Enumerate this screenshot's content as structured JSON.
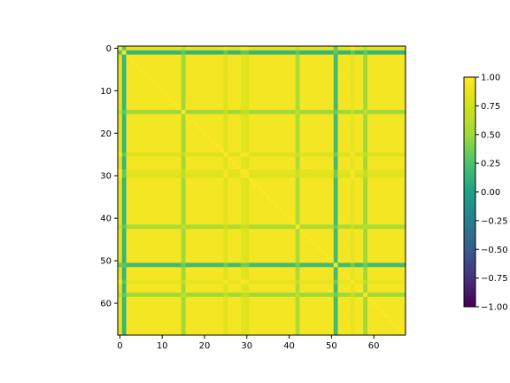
{
  "chart_data": {
    "type": "heatmap",
    "title": "",
    "xlabel": "",
    "ylabel": "",
    "size": 68,
    "xlim": [
      -0.5,
      67.5
    ],
    "ylim": [
      67.5,
      -0.5
    ],
    "x_ticks": [
      0,
      10,
      20,
      30,
      40,
      50,
      60
    ],
    "x_tick_labels": [
      "0",
      "10",
      "20",
      "30",
      "40",
      "50",
      "60"
    ],
    "y_ticks": [
      0,
      10,
      20,
      30,
      40,
      50,
      60
    ],
    "y_tick_labels": [
      "0",
      "10",
      "20",
      "30",
      "40",
      "50",
      "60"
    ],
    "colormap": "viridis",
    "vmin": -1.0,
    "vmax": 1.0,
    "colorbar_ticks": [
      1.0,
      0.75,
      0.5,
      0.25,
      0.0,
      -0.25,
      -0.5,
      -0.75,
      -1.0
    ],
    "colorbar_tick_labels": [
      "1.00",
      "0.75",
      "0.50",
      "0.25",
      "0.00",
      "−0.25",
      "−0.50",
      "−0.75",
      "−1.00"
    ],
    "base_value": 0.95,
    "diagonal_value": 1.0,
    "special_indices": [
      {
        "index": 0,
        "level": 0.85
      },
      {
        "index": 1,
        "level": 0.15
      },
      {
        "index": 15,
        "level": 0.5
      },
      {
        "index": 25,
        "level": 0.82
      },
      {
        "index": 29,
        "level": 0.85
      },
      {
        "index": 30,
        "level": 0.82
      },
      {
        "index": 42,
        "level": 0.55
      },
      {
        "index": 51,
        "level": 0.2
      },
      {
        "index": 55,
        "level": 0.88
      },
      {
        "index": 58,
        "level": 0.5
      }
    ]
  }
}
